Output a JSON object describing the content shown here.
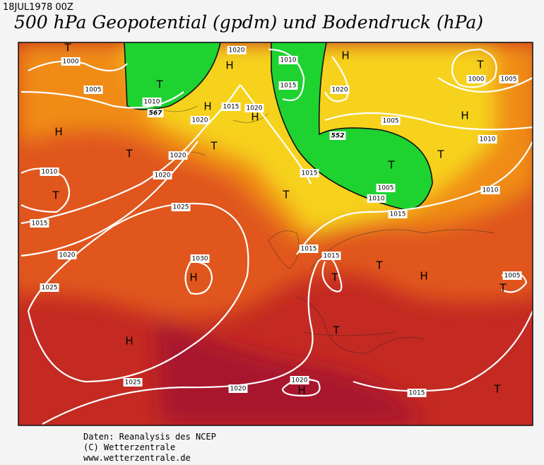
{
  "header": {
    "date": "18JUL1978 00Z",
    "title": "500 hPa Geopotential (gpdm) und Bodendruck (hPa)"
  },
  "map": {
    "isobar_labels": [
      1000,
      1005,
      1010,
      1020,
      1020,
      1020,
      1010,
      1015,
      1025,
      1020,
      1025,
      1030,
      1025,
      1020,
      1020,
      1015,
      1020,
      1010,
      1015,
      1020,
      1015,
      1020,
      1005,
      1000,
      1005,
      1010,
      1010,
      1005,
      1010,
      1015,
      1015,
      1015,
      1015,
      1005
    ],
    "geopotential_labels": [
      567,
      552
    ],
    "pressure_centers": [
      "T",
      "T",
      "H",
      "T",
      "T",
      "H",
      "H",
      "H",
      "T",
      "T",
      "H",
      "T",
      "H",
      "T",
      "T",
      "H",
      "T",
      "T",
      "H",
      "T",
      "H",
      "T",
      "H",
      "T"
    ]
  },
  "footer": {
    "lines": [
      "Daten: Reanalysis des NCEP",
      "(C) Wetterzentrale",
      "www.wetterzentrale.de"
    ]
  }
}
